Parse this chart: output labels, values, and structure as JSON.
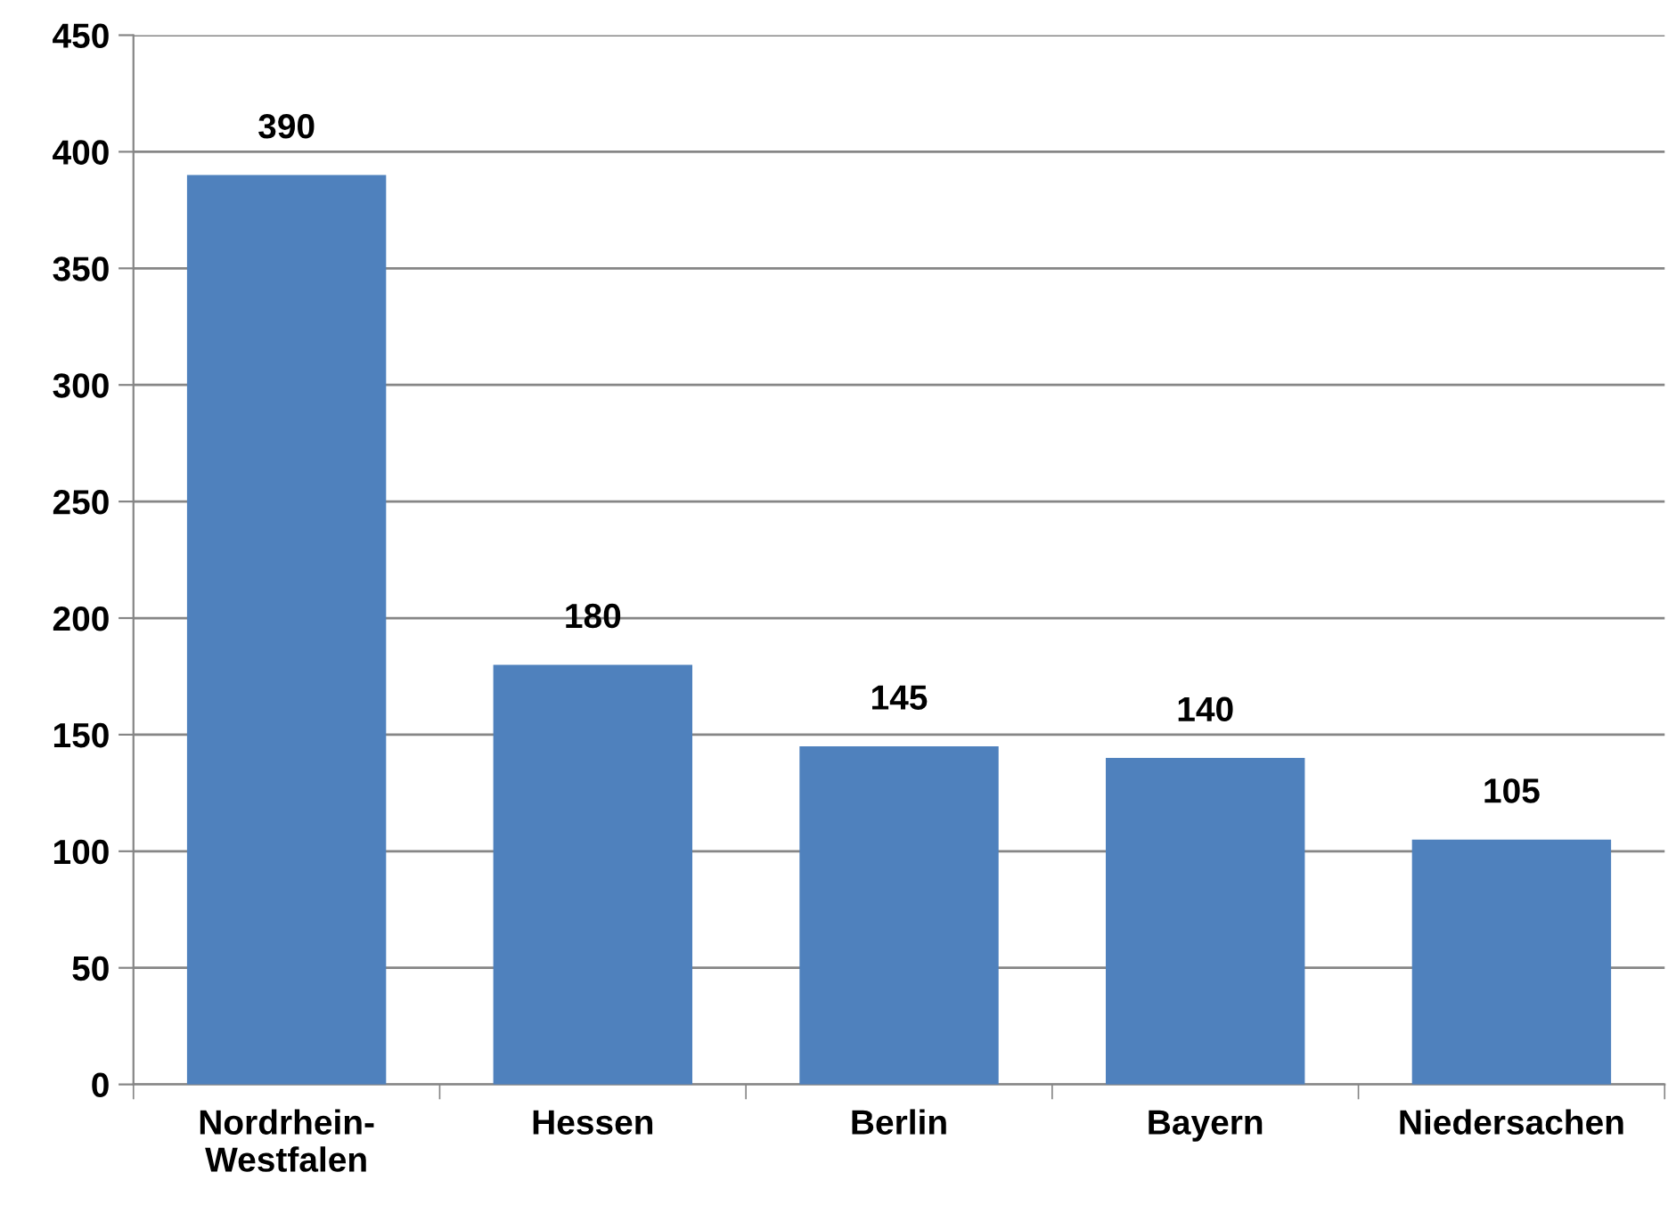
{
  "chart_data": {
    "type": "bar",
    "categories": [
      "Nordrhein-\nWestfalen",
      "Hessen",
      "Berlin",
      "Bayern",
      "Niedersachen"
    ],
    "values": [
      390,
      180,
      145,
      140,
      105
    ],
    "color": "#4f81bd",
    "ylim": [
      0,
      450
    ],
    "yticks": [
      0,
      50,
      100,
      150,
      200,
      250,
      300,
      350,
      400,
      450
    ],
    "grid": "y",
    "data_labels": true
  }
}
